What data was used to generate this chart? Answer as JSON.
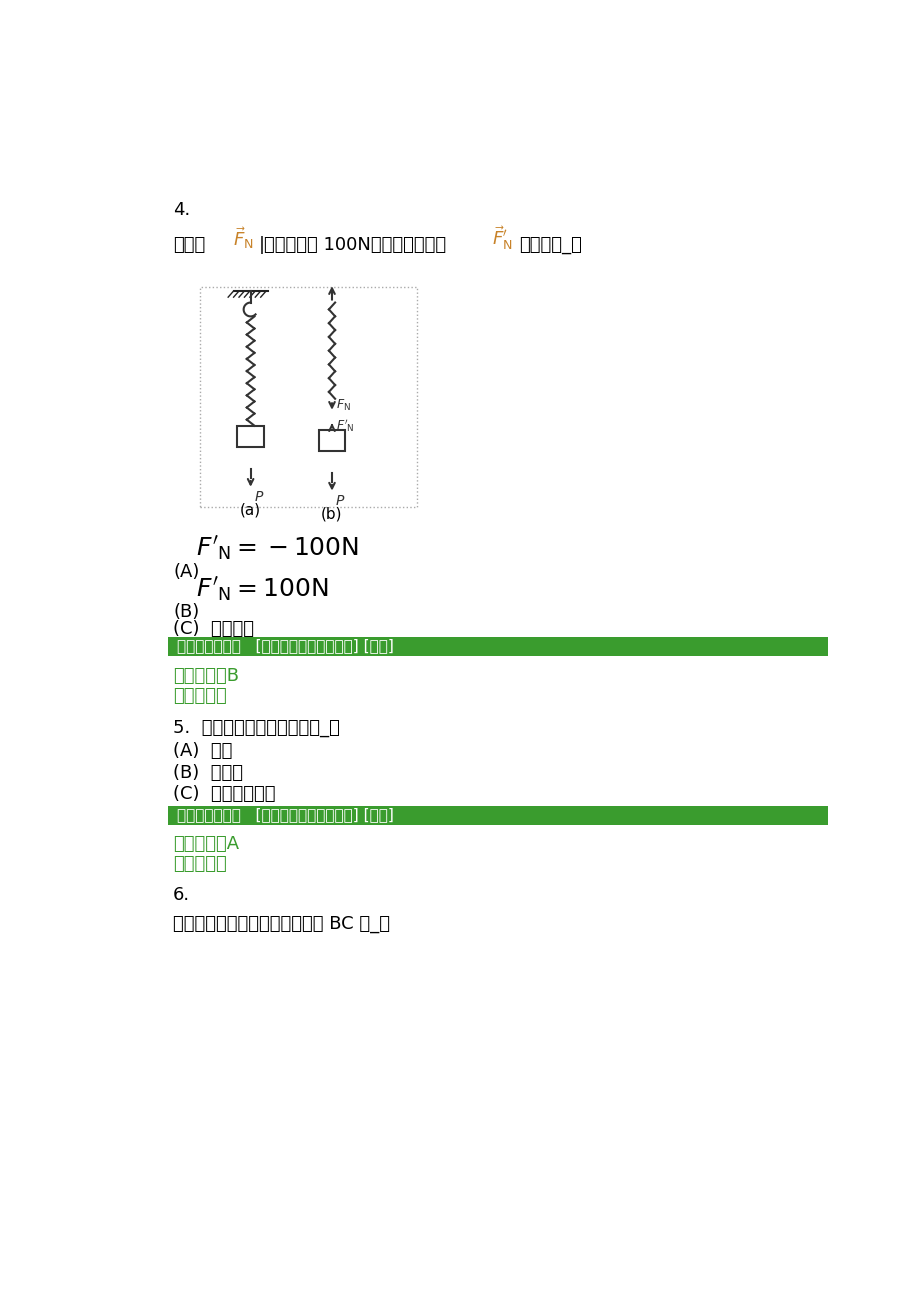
{
  "bg_color": "#ffffff",
  "text_color": "#000000",
  "green_color": "#3a9c2e",
  "green_bg_color": "#3a9c2e",
  "green_text_color": "#ffffff",
  "orange_color": "#c8832a",
  "q4_number": "4.",
  "option_A_label": "(A)",
  "option_B_label": "(B)",
  "option_C_text": "(C)  不能确定",
  "green_bar1_text": "你选择的答案：   [前面作业中已经做正确] [正确]",
  "correct_answer1": "正确答案：B",
  "solution1": "解答参考：",
  "q5_text": "5.  力的可传性原理只适用于_。",
  "q5_A": "(A)  刚体",
  "q5_B": "(B)  变形体",
  "q5_C": "(C)  刚体和变形体",
  "green_bar2_text": "你选择的答案：   [前面作业中已经做正确] [正确]",
  "correct_answer2": "正确答案：A",
  "solution2": "解答参考：",
  "q6_number": "6.",
  "q6_text": "图示结构，各杆自重不计，则杆 BC 是_。",
  "q4_line1": "作用力",
  "q4_line2": "的大小等于 100N，则其反作用力",
  "q4_line3": "的大小为_。"
}
